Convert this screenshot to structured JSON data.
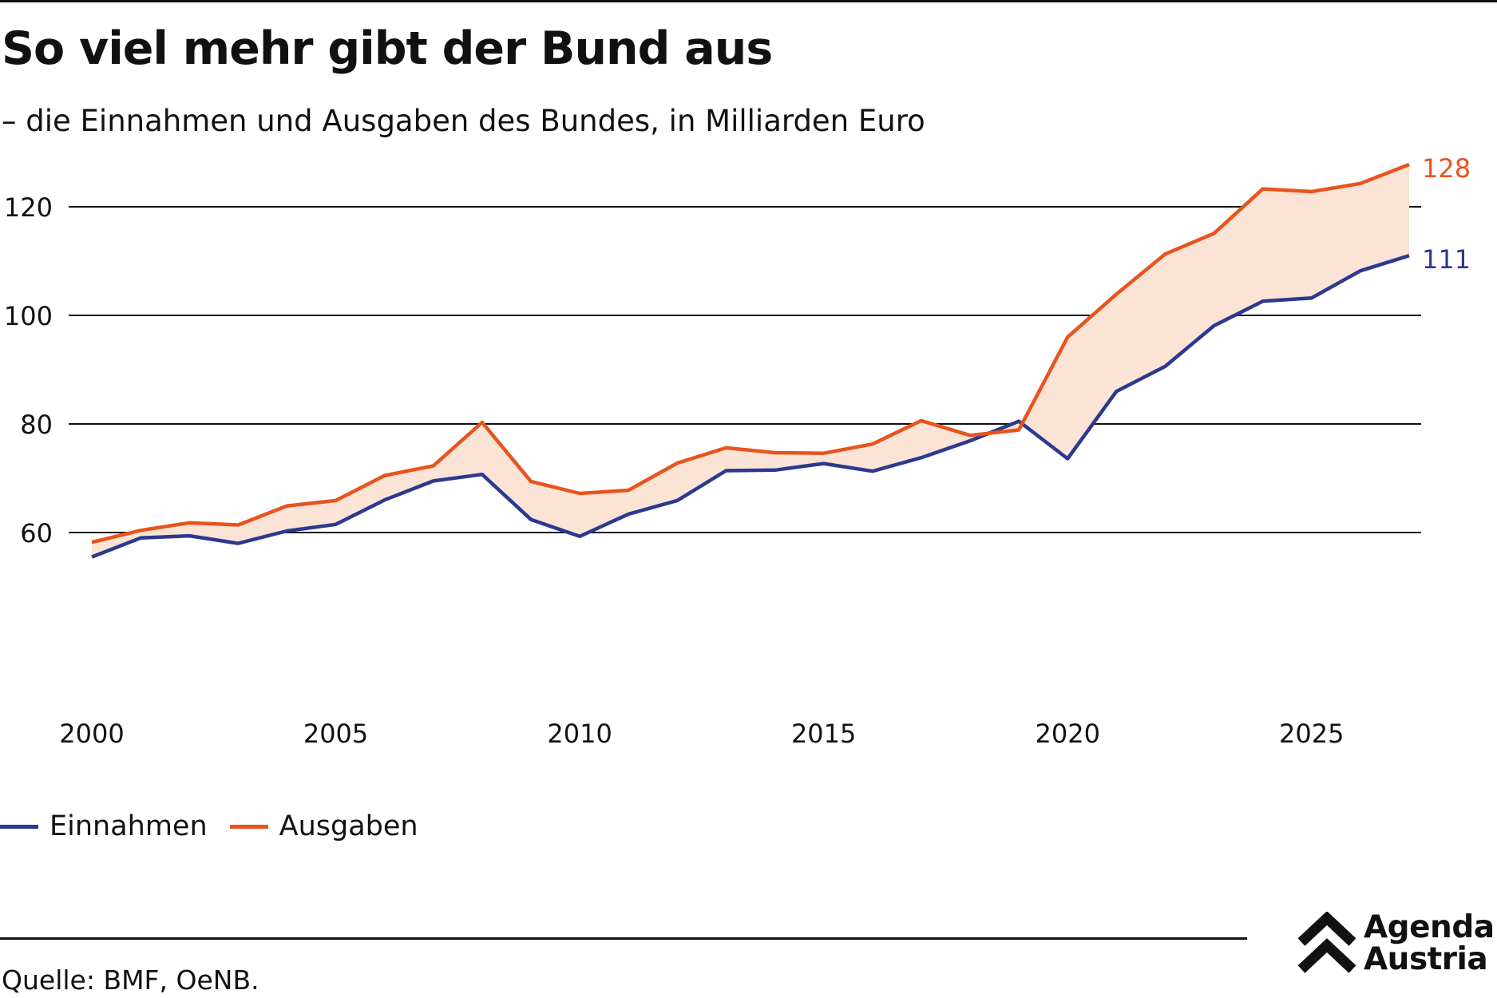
{
  "header": {
    "title": "So viel mehr gibt der Bund aus",
    "subtitle": "– die Einnahmen und Ausgaben des Bundes, in Milliarden Euro"
  },
  "footer": {
    "source": "Quelle: BMF, OeNB.",
    "logo_line1": "Agenda",
    "logo_line2": "Austria"
  },
  "legend": {
    "einnahmen": "Einnahmen",
    "ausgaben": "Ausgaben"
  },
  "colors": {
    "einnahmen": "#2b3990",
    "ausgaben": "#e8541c",
    "gap_fill": "#fbe3d6",
    "grid": "#111111"
  },
  "chart_data": {
    "type": "line",
    "x": [
      2000,
      2001,
      2002,
      2003,
      2004,
      2005,
      2006,
      2007,
      2008,
      2009,
      2010,
      2011,
      2012,
      2013,
      2014,
      2015,
      2016,
      2017,
      2018,
      2019,
      2020,
      2021,
      2022,
      2023,
      2024,
      2025,
      2026,
      2027
    ],
    "series": [
      {
        "name": "Einnahmen",
        "color": "#2b3990",
        "values": [
          55.5,
          59.0,
          59.4,
          58.0,
          60.3,
          61.5,
          66.0,
          69.5,
          70.7,
          62.4,
          59.3,
          63.4,
          65.9,
          71.4,
          71.5,
          72.7,
          71.3,
          73.8,
          76.9,
          80.5,
          73.6,
          86.0,
          90.6,
          98.1,
          102.6,
          103.2,
          108.2,
          111.0
        ]
      },
      {
        "name": "Ausgaben",
        "color": "#e8541c",
        "values": [
          58.2,
          60.4,
          61.8,
          61.4,
          64.9,
          65.9,
          70.5,
          72.3,
          80.3,
          69.4,
          67.2,
          67.8,
          72.8,
          75.6,
          74.7,
          74.6,
          76.3,
          80.6,
          77.9,
          78.9,
          96.0,
          103.9,
          111.3,
          115.1,
          123.3,
          122.8,
          124.3,
          127.8
        ]
      }
    ],
    "end_labels": {
      "einnahmen": "111",
      "ausgaben": "128"
    },
    "y_ticks": [
      60,
      80,
      100,
      120
    ],
    "y_tick_labels": [
      "60",
      "80",
      "100",
      "120"
    ],
    "x_ticks": [
      2000,
      2005,
      2010,
      2015,
      2020,
      2025
    ],
    "x_tick_labels": [
      "2000",
      "2005",
      "2010",
      "2015",
      "2020",
      "2025"
    ],
    "xlim": [
      2000,
      2027
    ],
    "ylim": [
      50,
      130
    ],
    "grid": true,
    "fill_between": true,
    "legend_position": "bottom-left"
  }
}
